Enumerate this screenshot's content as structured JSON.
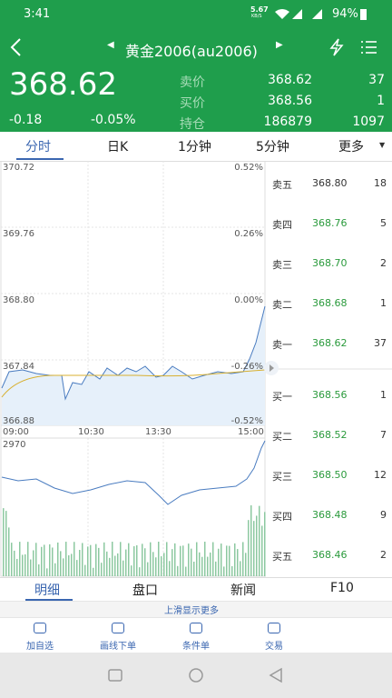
{
  "status_bar": {
    "time": "3:41",
    "speed": "5.67",
    "speed_unit": "KB/S",
    "battery": "94%"
  },
  "header": {
    "title": "黄金2006(au2006)"
  },
  "quote": {
    "price": "368.62",
    "change": "-0.18",
    "change_pct": "-0.05%",
    "rows": [
      {
        "label": "卖价",
        "price": "368.62",
        "qty": "37"
      },
      {
        "label": "买价",
        "price": "368.56",
        "qty": "1"
      },
      {
        "label": "持仓",
        "price": "186879",
        "qty": "1097"
      }
    ]
  },
  "tabs": [
    "分时",
    "日K",
    "1分钟",
    "5分钟",
    "更多"
  ],
  "chart": {
    "price_labels": [
      "370.72",
      "369.76",
      "368.80",
      "367.84",
      "366.88"
    ],
    "pct_labels": [
      "0.52%",
      "0.26%",
      "0.00%",
      "-0.26%",
      "-0.52%"
    ],
    "time_labels": [
      "09:00",
      "10:30",
      "13:30",
      "15:00"
    ],
    "volume_label": "2970"
  },
  "order_book": {
    "asks": [
      {
        "label": "卖五",
        "price": "368.80",
        "qty": "18"
      },
      {
        "label": "卖四",
        "price": "368.76",
        "qty": "5"
      },
      {
        "label": "卖三",
        "price": "368.70",
        "qty": "2"
      },
      {
        "label": "卖二",
        "price": "368.68",
        "qty": "1"
      },
      {
        "label": "卖一",
        "price": "368.62",
        "qty": "37"
      }
    ],
    "bids": [
      {
        "label": "买一",
        "price": "368.56",
        "qty": "1"
      },
      {
        "label": "买二",
        "price": "368.52",
        "qty": "7"
      },
      {
        "label": "买三",
        "price": "368.50",
        "qty": "12"
      },
      {
        "label": "买四",
        "price": "368.48",
        "qty": "9"
      },
      {
        "label": "买五",
        "price": "368.46",
        "qty": "2"
      }
    ]
  },
  "bottom_tabs": [
    "明细",
    "盘口",
    "新闻",
    "F10"
  ],
  "hint": "上滑显示更多",
  "toolbar": [
    "加自选",
    "画线下单",
    "条件单",
    "交易"
  ]
}
